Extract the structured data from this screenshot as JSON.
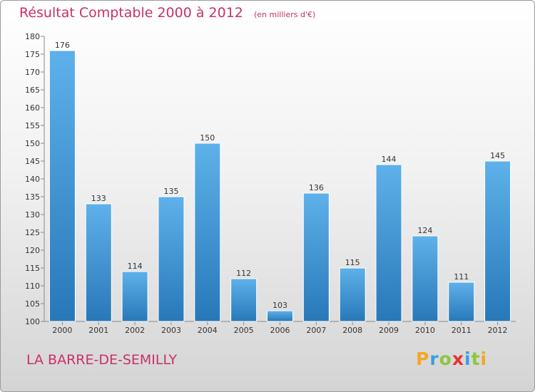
{
  "header": {
    "title": "Résultat Comptable 2000 à 2012",
    "subtitle": "(en milliers d'€)"
  },
  "footer": {
    "location": "LA BARRE-DE-SEMILLY",
    "logo_text": "Proxiti",
    "logo_colors": [
      "#f5a623",
      "#3aa0e0",
      "#8cc63f",
      "#e8322f",
      "#3aa0e0",
      "#8cc63f",
      "#f5a623"
    ]
  },
  "colors": {
    "title": "#c8306a",
    "bar_top": "#5eb1ea",
    "bar_bottom": "#2878b8"
  },
  "chart_data": {
    "type": "bar",
    "title": "Résultat Comptable 2000 à 2012",
    "subtitle": "(en milliers d'€)",
    "categories": [
      "2000",
      "2001",
      "2002",
      "2003",
      "2004",
      "2005",
      "2006",
      "2007",
      "2008",
      "2009",
      "2010",
      "2011",
      "2012"
    ],
    "values": [
      176,
      133,
      114,
      135,
      150,
      112,
      103,
      136,
      115,
      144,
      124,
      111,
      145
    ],
    "ylim": [
      100,
      180
    ],
    "yticks": [
      100,
      105,
      110,
      115,
      120,
      125,
      130,
      135,
      140,
      145,
      150,
      155,
      160,
      165,
      170,
      175,
      180
    ],
    "xlabel": "",
    "ylabel": "",
    "grid": false,
    "data_labels": true
  }
}
